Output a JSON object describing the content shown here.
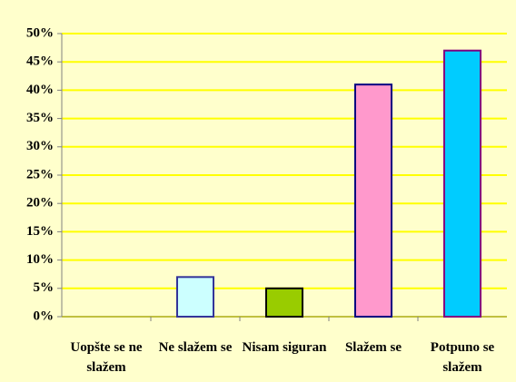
{
  "chart_data": {
    "type": "bar",
    "categories": [
      "Uopšte se ne slažem",
      "Ne slažem se",
      "Nisam siguran",
      "Slažem se",
      "Potpuno se slažem"
    ],
    "values": [
      0,
      7,
      5,
      41,
      47
    ],
    "colors": [
      "#ccffff",
      "#ccffff",
      "#99cc00",
      "#ff99cc",
      "#00ccff"
    ],
    "edgecolors": [
      "#000080",
      "#333399",
      "#000000",
      "#000080",
      "#800080"
    ],
    "ylim": [
      0,
      50
    ],
    "yticks": [
      {
        "value": 0,
        "label": "0%"
      },
      {
        "value": 5,
        "label": "5%"
      },
      {
        "value": 10,
        "label": "10%"
      },
      {
        "value": 15,
        "label": "15%"
      },
      {
        "value": 20,
        "label": "20%"
      },
      {
        "value": 25,
        "label": "25%"
      },
      {
        "value": 30,
        "label": "30%"
      },
      {
        "value": 35,
        "label": "35%"
      },
      {
        "value": 40,
        "label": "40%"
      },
      {
        "value": 45,
        "label": "45%"
      },
      {
        "value": 50,
        "label": "50%"
      }
    ],
    "grid": true,
    "grid_color": "#ffff00"
  }
}
